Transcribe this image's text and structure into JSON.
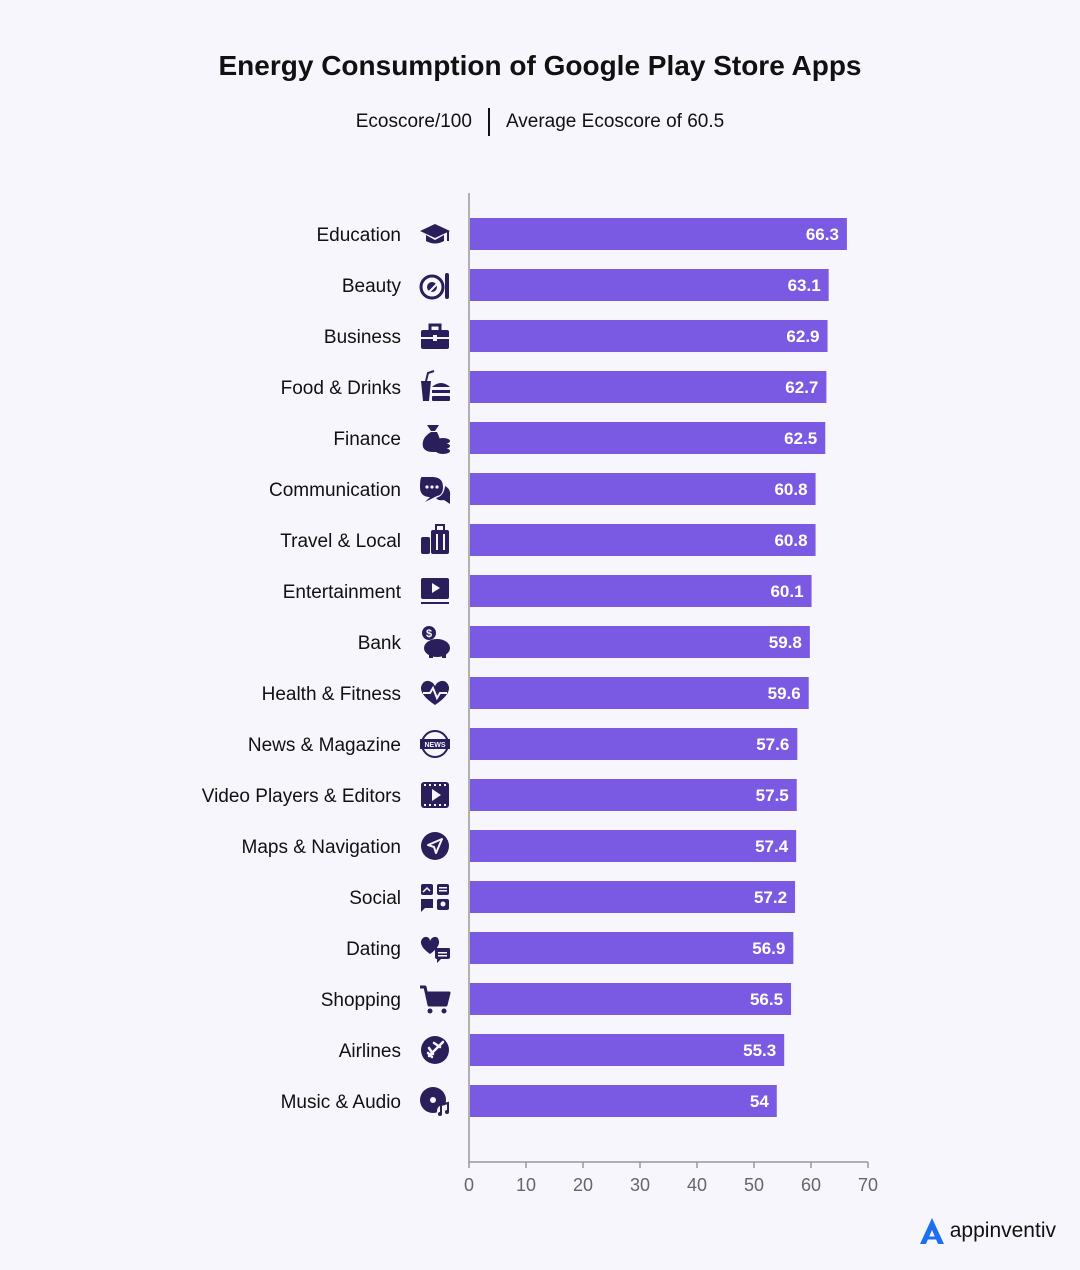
{
  "title": "Energy Consumption of Google Play Store Apps",
  "subtitle_left": "Ecoscore/100",
  "subtitle_right": "Average Ecoscore of 60.5",
  "brand": "appinventiv",
  "colors": {
    "bar": "#7b5ae3",
    "icon": "#2a1f5a",
    "axis": "#999999",
    "tick": "#666666",
    "brand_accent": "#1e6ff0"
  },
  "chart_data": {
    "type": "bar",
    "orientation": "horizontal",
    "categories": [
      "Education",
      "Beauty",
      "Business",
      "Food & Drinks",
      "Finance",
      "Communication",
      "Travel & Local",
      "Entertainment",
      "Bank",
      "Health & Fitness",
      "News & Magazine",
      "Video Players & Editors",
      "Maps & Navigation",
      "Social",
      "Dating",
      "Shopping",
      "Airlines",
      "Music & Audio"
    ],
    "values": [
      66.3,
      63.1,
      62.9,
      62.7,
      62.5,
      60.8,
      60.8,
      60.1,
      59.8,
      59.6,
      57.6,
      57.5,
      57.4,
      57.2,
      56.9,
      56.5,
      55.3,
      54
    ],
    "value_labels": [
      "66.3",
      "63.1",
      "62.9",
      "62.7",
      "62.5",
      "60.8",
      "60.8",
      "60.1",
      "59.8",
      "59.6",
      "57.6",
      "57.5",
      "57.4",
      "57.2",
      "56.9",
      "56.5",
      "55.3",
      "54"
    ],
    "icons": [
      "graduation-cap-icon",
      "makeup-icon",
      "briefcase-icon",
      "food-drink-icon",
      "money-bag-icon",
      "chat-bubbles-icon",
      "luggage-icon",
      "video-screen-icon",
      "piggy-bank-icon",
      "heartbeat-icon",
      "news-globe-icon",
      "video-player-icon",
      "navigation-arrow-icon",
      "social-media-icon",
      "hearts-chat-icon",
      "shopping-cart-icon",
      "airplane-icon",
      "music-disc-icon"
    ],
    "xlim": [
      0,
      70
    ],
    "xticks": [
      "0",
      "10",
      "20",
      "30",
      "40",
      "50",
      "60",
      "70"
    ],
    "grid": false
  }
}
